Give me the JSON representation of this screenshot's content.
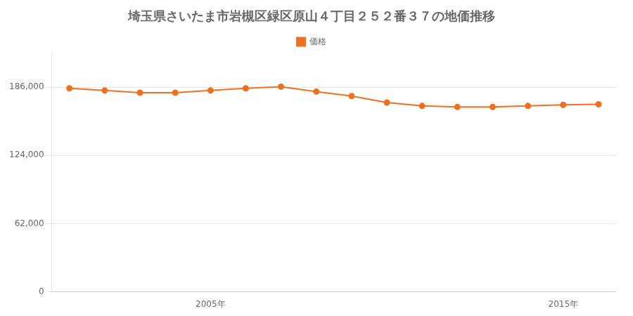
{
  "chart_data": {
    "type": "line",
    "title": "埼玉県さいたま市岩槻区緑区原山４丁目２５２番３７の地価推移",
    "x": [
      2001,
      2002,
      2003,
      2004,
      2005,
      2006,
      2007,
      2008,
      2009,
      2010,
      2011,
      2012,
      2013,
      2014,
      2015,
      2016
    ],
    "series": [
      {
        "name": "価格",
        "color": "#f07020",
        "marker": "circle",
        "values": [
          185000,
          183000,
          181000,
          181000,
          183000,
          185000,
          186500,
          182000,
          178000,
          172000,
          169000,
          168000,
          168000,
          169000,
          170000,
          170500
        ]
      }
    ],
    "xlim": [
      2000.5,
      2016.5
    ],
    "xticks": [
      {
        "value": 2005,
        "label": "2005年"
      },
      {
        "value": 2015,
        "label": "2015年"
      }
    ],
    "ylim": [
      0,
      217000
    ],
    "yticks": [
      0,
      {
        "value": 62000,
        "label": "62,000"
      },
      {
        "value": 124000,
        "label": "124,000"
      },
      {
        "value": 186000,
        "label": "186,000"
      }
    ],
    "grid": "y",
    "legend": "top"
  }
}
